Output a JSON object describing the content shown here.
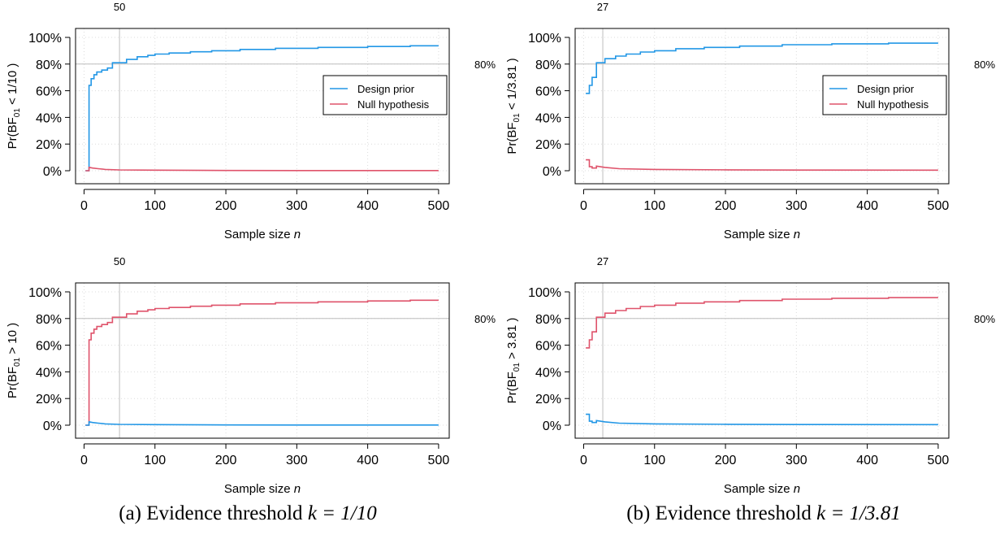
{
  "figure": {
    "captions": [
      {
        "prefix": "(a) Evidence threshold ",
        "k_label": "k = 1/10"
      },
      {
        "prefix": "(b) Evidence threshold ",
        "k_label": "k = 1/3.81"
      }
    ]
  },
  "colors": {
    "design_prior": "#2297E6",
    "null_hypothesis": "#DF536B",
    "reference": "#BEBEBE",
    "axis": "#000000"
  },
  "chart_data": [
    {
      "type": "line",
      "panel": "a-top",
      "ylabel_prefix": "Pr(BF",
      "ylabel_sub": "01",
      "ylabel_suffix": " < 1/10 )",
      "xlabel": "Sample size ",
      "xlabel_italic": "n",
      "xlim": [
        0,
        500
      ],
      "ylim": [
        0,
        1
      ],
      "xticks": [
        0,
        100,
        200,
        300,
        400,
        500
      ],
      "yticks": [
        "0%",
        "20%",
        "40%",
        "60%",
        "80%",
        "100%"
      ],
      "reference_value": 0.8,
      "reference_label": "80%",
      "vline_n": 50,
      "vline_label": "50",
      "grid": true,
      "legend": {
        "position": "right",
        "entries": [
          "Design prior",
          "Null hypothesis"
        ]
      },
      "series": [
        {
          "name": "Design prior",
          "color_key": "design_prior",
          "points": [
            [
              2,
              0
            ],
            [
              7,
              0
            ],
            [
              7,
              0.64
            ],
            [
              10,
              0.64
            ],
            [
              10,
              0.69
            ],
            [
              14,
              0.69
            ],
            [
              14,
              0.72
            ],
            [
              18,
              0.72
            ],
            [
              18,
              0.74
            ],
            [
              25,
              0.74
            ],
            [
              25,
              0.755
            ],
            [
              33,
              0.755
            ],
            [
              33,
              0.77
            ],
            [
              40,
              0.77
            ],
            [
              40,
              0.81
            ],
            [
              60,
              0.81
            ],
            [
              60,
              0.835
            ],
            [
              75,
              0.835
            ],
            [
              75,
              0.855
            ],
            [
              90,
              0.855
            ],
            [
              90,
              0.865
            ],
            [
              100,
              0.865
            ],
            [
              100,
              0.875
            ],
            [
              120,
              0.875
            ],
            [
              120,
              0.883
            ],
            [
              150,
              0.883
            ],
            [
              150,
              0.892
            ],
            [
              180,
              0.892
            ],
            [
              180,
              0.9
            ],
            [
              220,
              0.9
            ],
            [
              220,
              0.91
            ],
            [
              270,
              0.91
            ],
            [
              270,
              0.918
            ],
            [
              330,
              0.918
            ],
            [
              330,
              0.925
            ],
            [
              400,
              0.925
            ],
            [
              400,
              0.932
            ],
            [
              460,
              0.932
            ],
            [
              460,
              0.937
            ],
            [
              500,
              0.937
            ]
          ]
        },
        {
          "name": "Null hypothesis",
          "color_key": "null_hypothesis",
          "points": [
            [
              2,
              0
            ],
            [
              7,
              0
            ],
            [
              7,
              0.025
            ],
            [
              12,
              0.02
            ],
            [
              20,
              0.015
            ],
            [
              30,
              0.01
            ],
            [
              50,
              0.006
            ],
            [
              100,
              0.004
            ],
            [
              200,
              0.002
            ],
            [
              300,
              0.0015
            ],
            [
              500,
              0.001
            ]
          ]
        }
      ]
    },
    {
      "type": "line",
      "panel": "b-top",
      "ylabel_prefix": "Pr(BF",
      "ylabel_sub": "01",
      "ylabel_suffix": " < 1/3.81 )",
      "xlabel": "Sample size ",
      "xlabel_italic": "n",
      "xlim": [
        0,
        500
      ],
      "ylim": [
        0,
        1
      ],
      "xticks": [
        0,
        100,
        200,
        300,
        400,
        500
      ],
      "yticks": [
        "0%",
        "20%",
        "40%",
        "60%",
        "80%",
        "100%"
      ],
      "reference_value": 0.8,
      "reference_label": "80%",
      "vline_n": 27,
      "vline_label": "27",
      "grid": true,
      "legend": {
        "position": "right",
        "entries": [
          "Design prior",
          "Null hypothesis"
        ]
      },
      "series": [
        {
          "name": "Design prior",
          "color_key": "design_prior",
          "points": [
            [
              3,
              0.58
            ],
            [
              8,
              0.58
            ],
            [
              8,
              0.64
            ],
            [
              12,
              0.64
            ],
            [
              12,
              0.7
            ],
            [
              18,
              0.7
            ],
            [
              18,
              0.81
            ],
            [
              30,
              0.81
            ],
            [
              30,
              0.84
            ],
            [
              45,
              0.84
            ],
            [
              45,
              0.86
            ],
            [
              60,
              0.86
            ],
            [
              60,
              0.875
            ],
            [
              80,
              0.875
            ],
            [
              80,
              0.89
            ],
            [
              100,
              0.89
            ],
            [
              100,
              0.9
            ],
            [
              130,
              0.9
            ],
            [
              130,
              0.915
            ],
            [
              170,
              0.915
            ],
            [
              170,
              0.925
            ],
            [
              220,
              0.925
            ],
            [
              220,
              0.935
            ],
            [
              280,
              0.935
            ],
            [
              280,
              0.945
            ],
            [
              350,
              0.945
            ],
            [
              350,
              0.952
            ],
            [
              430,
              0.952
            ],
            [
              430,
              0.957
            ],
            [
              500,
              0.957
            ]
          ]
        },
        {
          "name": "Null hypothesis",
          "color_key": "null_hypothesis",
          "points": [
            [
              3,
              0.082
            ],
            [
              8,
              0.082
            ],
            [
              8,
              0.03
            ],
            [
              12,
              0.03
            ],
            [
              12,
              0.02
            ],
            [
              18,
              0.02
            ],
            [
              18,
              0.035
            ],
            [
              30,
              0.025
            ],
            [
              50,
              0.015
            ],
            [
              100,
              0.01
            ],
            [
              200,
              0.007
            ],
            [
              300,
              0.005
            ],
            [
              500,
              0.004
            ]
          ]
        }
      ]
    },
    {
      "type": "line",
      "panel": "a-bottom",
      "ylabel_prefix": "Pr(BF",
      "ylabel_sub": "01",
      "ylabel_suffix": " > 10 )",
      "xlabel": "Sample size ",
      "xlabel_italic": "n",
      "xlim": [
        0,
        500
      ],
      "ylim": [
        0,
        1
      ],
      "xticks": [
        0,
        100,
        200,
        300,
        400,
        500
      ],
      "yticks": [
        "0%",
        "20%",
        "40%",
        "60%",
        "80%",
        "100%"
      ],
      "reference_value": 0.8,
      "reference_label": "80%",
      "vline_n": 50,
      "vline_label": "50",
      "grid": true,
      "series": [
        {
          "name": "Null hypothesis",
          "color_key": "null_hypothesis",
          "points": [
            [
              2,
              0
            ],
            [
              7,
              0
            ],
            [
              7,
              0.64
            ],
            [
              10,
              0.64
            ],
            [
              10,
              0.69
            ],
            [
              14,
              0.69
            ],
            [
              14,
              0.72
            ],
            [
              18,
              0.72
            ],
            [
              18,
              0.74
            ],
            [
              25,
              0.74
            ],
            [
              25,
              0.755
            ],
            [
              33,
              0.755
            ],
            [
              33,
              0.77
            ],
            [
              40,
              0.77
            ],
            [
              40,
              0.81
            ],
            [
              60,
              0.81
            ],
            [
              60,
              0.835
            ],
            [
              75,
              0.835
            ],
            [
              75,
              0.855
            ],
            [
              90,
              0.855
            ],
            [
              90,
              0.865
            ],
            [
              100,
              0.865
            ],
            [
              100,
              0.875
            ],
            [
              120,
              0.875
            ],
            [
              120,
              0.883
            ],
            [
              150,
              0.883
            ],
            [
              150,
              0.892
            ],
            [
              180,
              0.892
            ],
            [
              180,
              0.9
            ],
            [
              220,
              0.9
            ],
            [
              220,
              0.91
            ],
            [
              270,
              0.91
            ],
            [
              270,
              0.918
            ],
            [
              330,
              0.918
            ],
            [
              330,
              0.925
            ],
            [
              400,
              0.925
            ],
            [
              400,
              0.932
            ],
            [
              460,
              0.932
            ],
            [
              460,
              0.937
            ],
            [
              500,
              0.937
            ]
          ]
        },
        {
          "name": "Design prior",
          "color_key": "design_prior",
          "points": [
            [
              2,
              0
            ],
            [
              7,
              0
            ],
            [
              7,
              0.025
            ],
            [
              12,
              0.02
            ],
            [
              20,
              0.015
            ],
            [
              30,
              0.01
            ],
            [
              50,
              0.006
            ],
            [
              100,
              0.004
            ],
            [
              200,
              0.002
            ],
            [
              300,
              0.0015
            ],
            [
              500,
              0.001
            ]
          ]
        }
      ]
    },
    {
      "type": "line",
      "panel": "b-bottom",
      "ylabel_prefix": "Pr(BF",
      "ylabel_sub": "01",
      "ylabel_suffix": " > 3.81 )",
      "xlabel": "Sample size ",
      "xlabel_italic": "n",
      "xlim": [
        0,
        500
      ],
      "ylim": [
        0,
        1
      ],
      "xticks": [
        0,
        100,
        200,
        300,
        400,
        500
      ],
      "yticks": [
        "0%",
        "20%",
        "40%",
        "60%",
        "80%",
        "100%"
      ],
      "reference_value": 0.8,
      "reference_label": "80%",
      "vline_n": 27,
      "vline_label": "27",
      "grid": true,
      "series": [
        {
          "name": "Null hypothesis",
          "color_key": "null_hypothesis",
          "points": [
            [
              3,
              0.58
            ],
            [
              8,
              0.58
            ],
            [
              8,
              0.64
            ],
            [
              12,
              0.64
            ],
            [
              12,
              0.7
            ],
            [
              18,
              0.7
            ],
            [
              18,
              0.81
            ],
            [
              30,
              0.81
            ],
            [
              30,
              0.84
            ],
            [
              45,
              0.84
            ],
            [
              45,
              0.86
            ],
            [
              60,
              0.86
            ],
            [
              60,
              0.875
            ],
            [
              80,
              0.875
            ],
            [
              80,
              0.89
            ],
            [
              100,
              0.89
            ],
            [
              100,
              0.9
            ],
            [
              130,
              0.9
            ],
            [
              130,
              0.915
            ],
            [
              170,
              0.915
            ],
            [
              170,
              0.925
            ],
            [
              220,
              0.925
            ],
            [
              220,
              0.935
            ],
            [
              280,
              0.935
            ],
            [
              280,
              0.945
            ],
            [
              350,
              0.945
            ],
            [
              350,
              0.952
            ],
            [
              430,
              0.952
            ],
            [
              430,
              0.957
            ],
            [
              500,
              0.957
            ]
          ]
        },
        {
          "name": "Design prior",
          "color_key": "design_prior",
          "points": [
            [
              3,
              0.082
            ],
            [
              8,
              0.082
            ],
            [
              8,
              0.03
            ],
            [
              12,
              0.03
            ],
            [
              12,
              0.02
            ],
            [
              18,
              0.02
            ],
            [
              18,
              0.035
            ],
            [
              30,
              0.025
            ],
            [
              50,
              0.015
            ],
            [
              100,
              0.01
            ],
            [
              200,
              0.007
            ],
            [
              300,
              0.005
            ],
            [
              500,
              0.004
            ]
          ]
        }
      ]
    }
  ]
}
